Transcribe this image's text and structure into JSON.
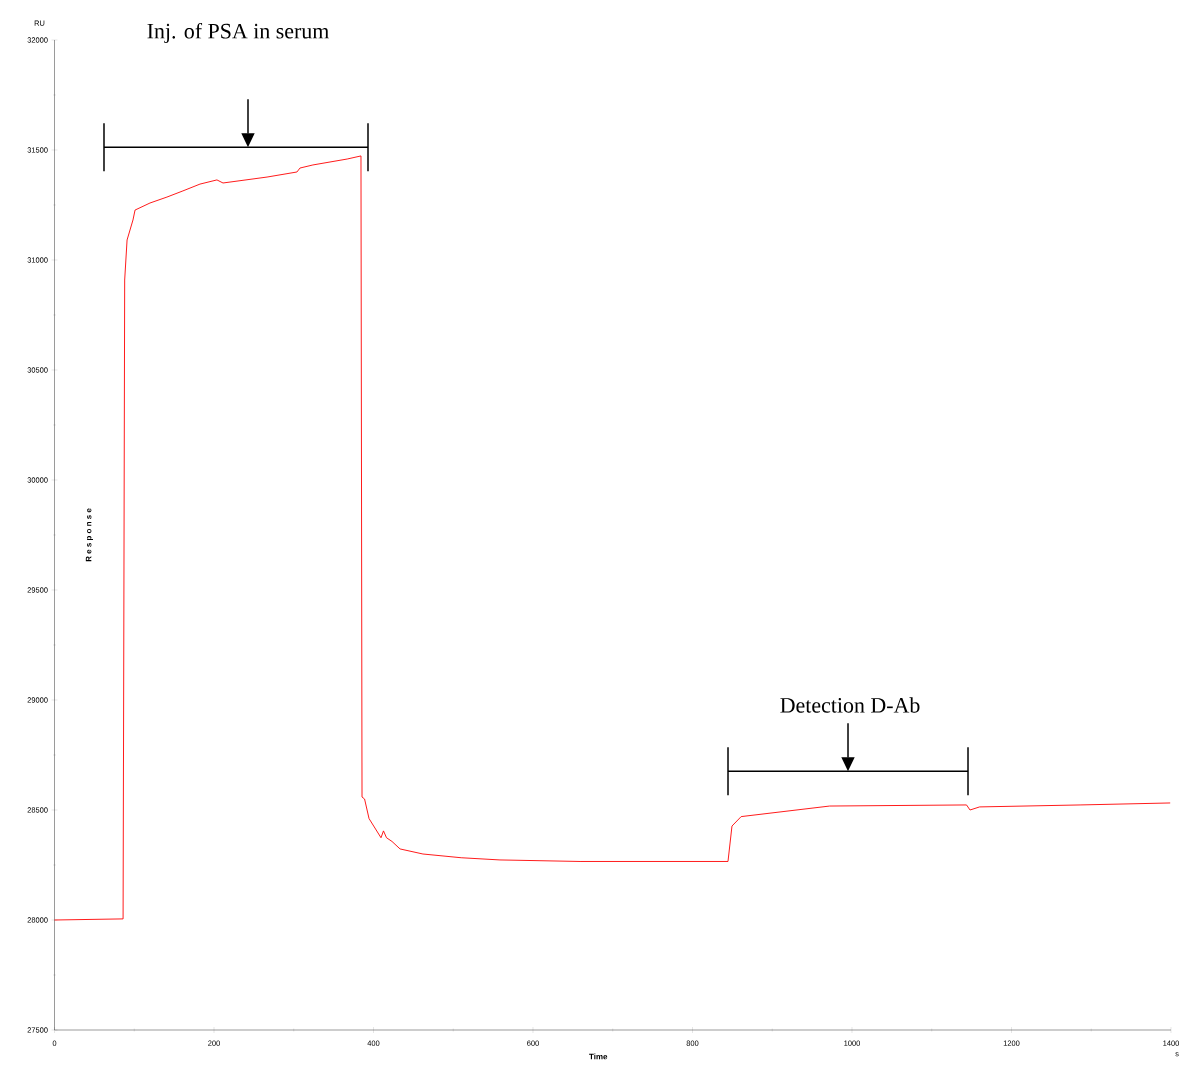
{
  "chart_data": {
    "type": "line",
    "xlabel": "Time",
    "ylabel": "R e s p o n s e",
    "x": [
      0,
      86,
      88,
      91,
      98.4,
      101,
      119.7,
      141,
      161,
      182.4,
      203.7,
      211.3,
      266.5,
      304,
      307.8,
      324,
      367,
      384.3,
      385.6,
      388.8,
      394.4,
      409.4,
      412.5,
      416.3,
      423.2,
      433.3,
      462,
      510,
      558.6,
      659,
      687.8,
      844.5,
      849.5,
      861,
      972,
      1143.6,
      1148,
      1160,
      1286,
      1399
    ],
    "series": [
      {
        "color": "#ff0000",
        "values": [
          28000,
          28005,
          30909,
          31091,
          31182,
          31227,
          31259,
          31286,
          31314,
          31345,
          31364,
          31350,
          31377,
          31400,
          31418,
          31432,
          31459,
          31473,
          28559,
          28550,
          28461,
          28374,
          28405,
          28374,
          28357,
          28323,
          28300,
          28283,
          28273,
          28266,
          28266,
          28266,
          28427,
          28470,
          28518,
          28523,
          28500,
          28514,
          28523,
          28532
        ]
      }
    ],
    "xlim": [
      0,
      1400
    ],
    "ylim": [
      27500,
      32000
    ],
    "xticks": [
      0,
      200,
      400,
      600,
      800,
      1000,
      1200,
      1400
    ],
    "yticks": [
      27500,
      28000,
      28500,
      29000,
      29500,
      30000,
      30500,
      31000,
      31500,
      32000
    ],
    "annotations": [
      "Inj. of PSA in serum",
      "Detection D-Ab",
      "RU",
      "s"
    ],
    "grid": false,
    "marker": "none",
    "line_style": "solid"
  }
}
